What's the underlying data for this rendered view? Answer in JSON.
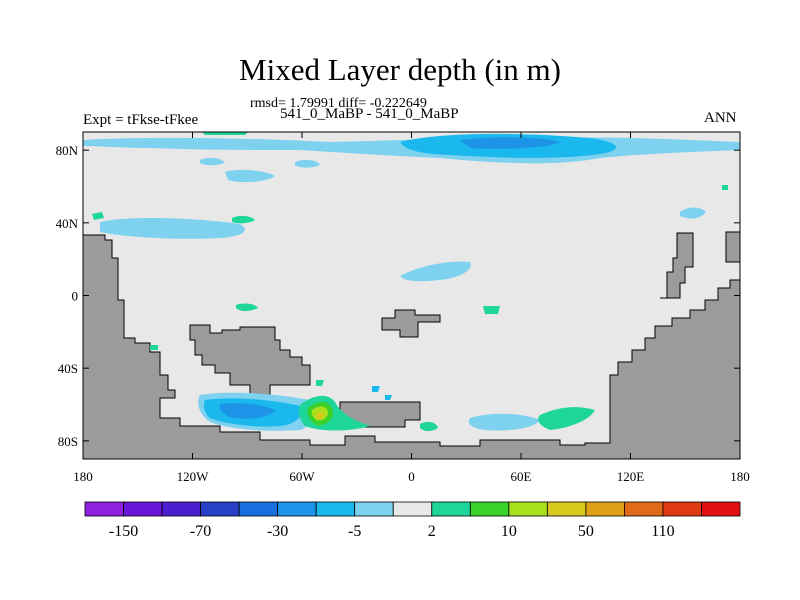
{
  "chart_data": {
    "type": "heatmap",
    "title": "Mixed Layer depth (in m)",
    "subtitle": "rmsd= 1.79991 diff= -0.222649",
    "center_label": "541_0_MaBP - 541_0_MaBP",
    "left_label": "Expt = tFkse-tFkee",
    "right_label": "ANN",
    "x_ticks": [
      {
        "lon": -180,
        "label": "180"
      },
      {
        "lon": -120,
        "label": "120W"
      },
      {
        "lon": -60,
        "label": "60W"
      },
      {
        "lon": 0,
        "label": "0"
      },
      {
        "lon": 60,
        "label": "60E"
      },
      {
        "lon": 120,
        "label": "120E"
      },
      {
        "lon": 180,
        "label": "180"
      }
    ],
    "y_ticks": [
      {
        "lat": 80,
        "label": "80N"
      },
      {
        "lat": 40,
        "label": "40N"
      },
      {
        "lat": 0,
        "label": "0"
      },
      {
        "lat": -40,
        "label": "40S"
      },
      {
        "lat": -80,
        "label": "80S"
      }
    ],
    "xlim": [
      -180,
      180
    ],
    "ylim": [
      -90,
      90
    ],
    "colorbar": {
      "colors": [
        "#8f20e0",
        "#6a14d8",
        "#4b1fd0",
        "#2840c8",
        "#1a6fe0",
        "#1d94e8",
        "#1ab8ec",
        "#7ed2f0",
        "#e8e8e8",
        "#1fd69a",
        "#3ad22a",
        "#a8e01e",
        "#d8c81e",
        "#e0a018",
        "#e06a18",
        "#e03a14",
        "#e01010"
      ],
      "labels": [
        {
          "after_index": 0,
          "text": "-150"
        },
        {
          "after_index": 2,
          "text": "-70"
        },
        {
          "after_index": 4,
          "text": "-30"
        },
        {
          "after_index": 6,
          "text": "-5"
        },
        {
          "after_index": 8,
          "text": "2"
        },
        {
          "after_index": 10,
          "text": "10"
        },
        {
          "after_index": 12,
          "text": "50"
        },
        {
          "after_index": 14,
          "text": "110"
        }
      ]
    },
    "background_color": "#e8e8e8",
    "land_color": "#9b9b9b"
  }
}
